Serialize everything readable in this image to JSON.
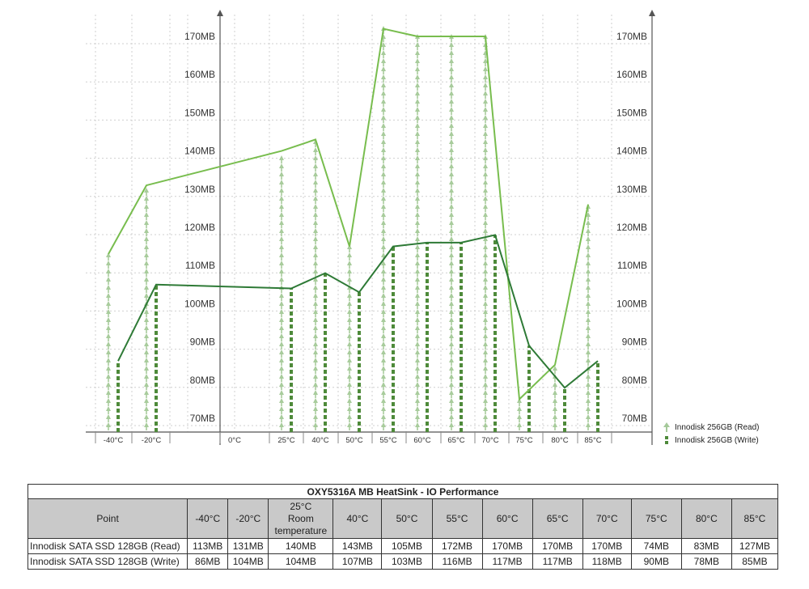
{
  "chart_data": {
    "type": "line",
    "categories": [
      "-40°C",
      "-20°C",
      "0°C",
      "25°C",
      "40°C",
      "50°C",
      "55°C",
      "60°C",
      "65°C",
      "70°C",
      "75°C",
      "80°C",
      "85°C"
    ],
    "y_tick_labels": [
      "70MB",
      "80MB",
      "90MB",
      "100MB",
      "110MB",
      "120MB",
      "130MB",
      "140MB",
      "150MB",
      "160MB",
      "170MB"
    ],
    "ylim": [
      68,
      175
    ],
    "series": [
      {
        "name": "Innodisk 256GB (Read)",
        "color": "#78bd4e",
        "x": [
          "-40°C",
          "-20°C",
          "25°C",
          "40°C",
          "50°C",
          "55°C",
          "60°C",
          "65°C",
          "70°C",
          "75°C",
          "80°C",
          "85°C"
        ],
        "values": [
          113,
          131,
          140,
          143,
          115,
          172,
          170,
          170,
          170,
          75,
          84,
          126
        ]
      },
      {
        "name": "Innodisk 256GB (Write)",
        "color": "#2e7a36",
        "x": [
          "-40°C",
          "-20°C",
          "25°C",
          "40°C",
          "50°C",
          "55°C",
          "60°C",
          "65°C",
          "70°C",
          "75°C",
          "80°C",
          "85°C"
        ],
        "values": [
          85,
          105,
          104,
          108,
          103,
          115,
          116,
          116,
          118,
          89,
          78,
          85
        ]
      }
    ],
    "grid": true,
    "legend_position": "bottom-right"
  },
  "legend": {
    "read_label": "Innodisk 256GB (Read)",
    "write_label": "Innodisk 256GB (Write)"
  },
  "table": {
    "title": "OXY5316A MB HeatSink - IO Performance",
    "header": {
      "point": "Point",
      "columns": [
        "-40°C",
        "-20°C",
        "25°C\nRoom\ntemperature",
        "40°C",
        "50°C",
        "55°C",
        "60°C",
        "65°C",
        "70°C",
        "75°C",
        "80°C",
        "85°C"
      ]
    },
    "rows": [
      {
        "label": "Innodisk SATA SSD 128GB (Read)",
        "values": [
          "113MB",
          "131MB",
          "140MB",
          "143MB",
          "105MB",
          "172MB",
          "170MB",
          "170MB",
          "170MB",
          "74MB",
          "83MB",
          "127MB"
        ]
      },
      {
        "label": "Innodisk SATA SSD 128GB (Write)",
        "values": [
          "86MB",
          "104MB",
          "104MB",
          "107MB",
          "103MB",
          "116MB",
          "117MB",
          "117MB",
          "118MB",
          "90MB",
          "78MB",
          "85MB"
        ]
      }
    ]
  }
}
